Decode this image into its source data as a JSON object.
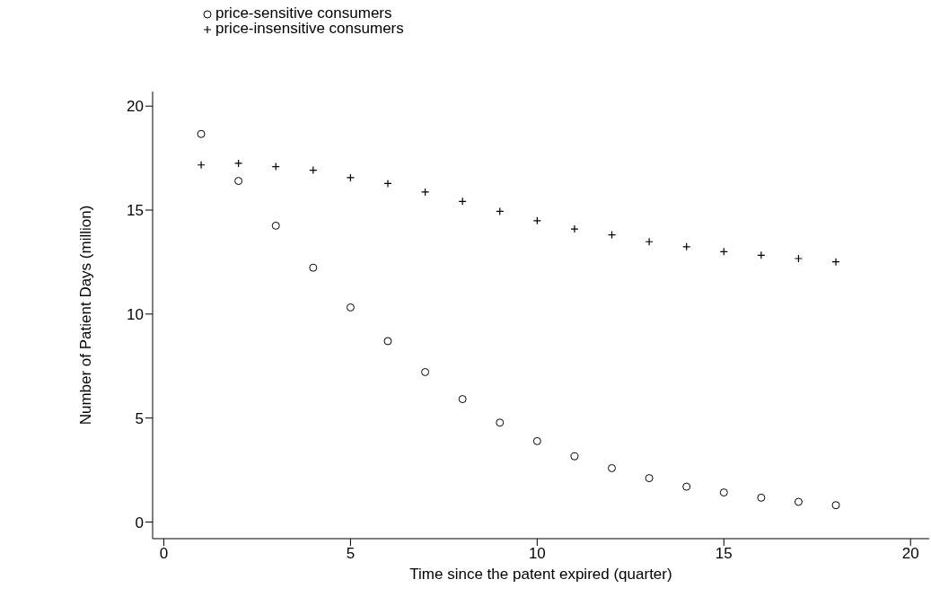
{
  "chart_data": {
    "type": "scatter",
    "xlabel": "Time since the patent expired (quarter)",
    "ylabel": "Number of Patient Days (million)",
    "x": [
      1,
      2,
      3,
      4,
      5,
      6,
      7,
      8,
      9,
      10,
      11,
      12,
      13,
      14,
      15,
      16,
      17,
      18
    ],
    "series": [
      {
        "name": "price-sensitive consumers",
        "color": "#000000",
        "marker": "circle",
        "values": [
          18.66,
          16.4,
          14.25,
          12.23,
          10.32,
          8.7,
          7.21,
          5.91,
          4.78,
          3.89,
          3.16,
          2.59,
          2.11,
          1.7,
          1.42,
          1.17,
          0.97,
          0.81
        ]
      },
      {
        "name": "price-insensitive consumers",
        "color": "#000000",
        "marker": "cross",
        "values": [
          17.17,
          17.25,
          17.09,
          16.92,
          16.56,
          16.28,
          15.87,
          15.42,
          14.94,
          14.49,
          14.09,
          13.81,
          13.48,
          13.24,
          13.0,
          12.83,
          12.67,
          12.51
        ]
      }
    ],
    "xlim": [
      -0.3,
      20.5
    ],
    "xticks": [
      0,
      5,
      10,
      15,
      20
    ],
    "ylim": [
      -0.8,
      20.7
    ],
    "yticks": [
      0,
      5,
      10,
      15,
      20
    ],
    "grid": false,
    "legend": "top left"
  }
}
